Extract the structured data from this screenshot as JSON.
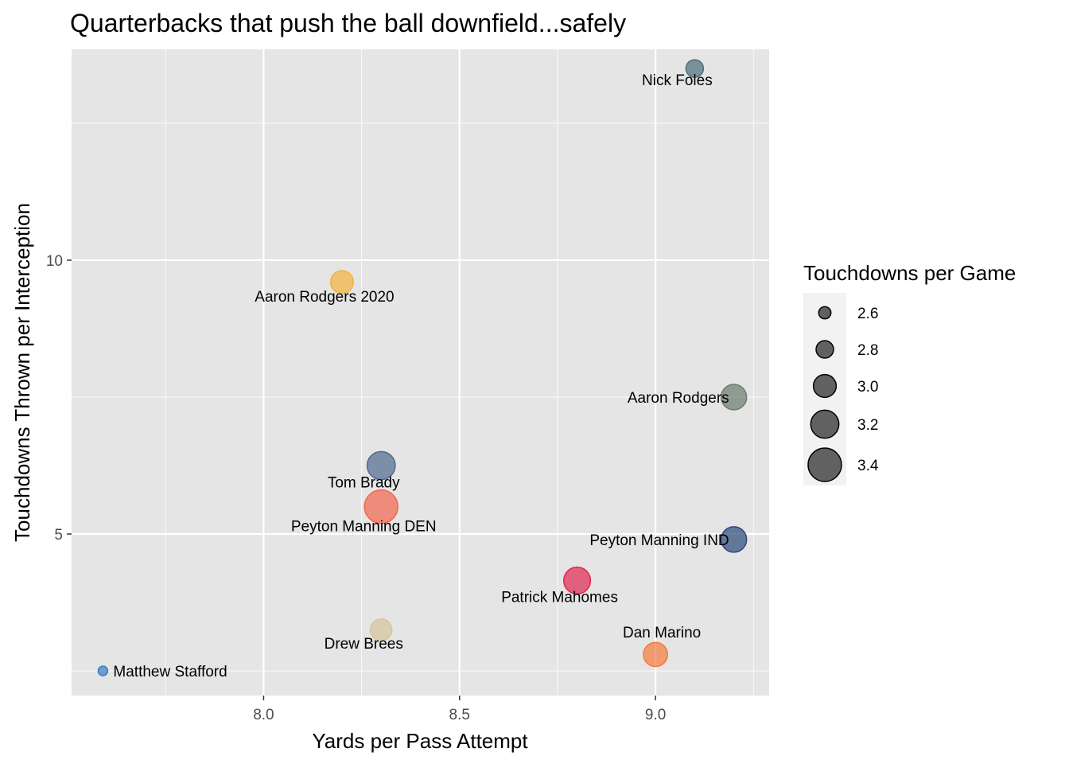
{
  "chart_data": {
    "type": "scatter",
    "title": "Quarterbacks that push the ball downfield...safely",
    "xlabel": "Yards per Pass Attempt",
    "ylabel": "Touchdowns Thrown per Interception",
    "xlim": [
      7.51,
      9.29
    ],
    "ylim": [
      2.05,
      13.85
    ],
    "x_ticks": [
      8.0,
      8.5,
      9.0
    ],
    "x_tick_labels": [
      "8.0",
      "8.5",
      "9.0"
    ],
    "y_ticks": [
      5,
      10
    ],
    "y_tick_labels": [
      "5",
      "10"
    ],
    "grid": true,
    "legend": {
      "title": "Touchdowns per Game",
      "placement": "right",
      "sizes": [
        2.6,
        2.8,
        3.0,
        3.2,
        3.4
      ],
      "labels": [
        "2.6",
        "2.8",
        "3.0",
        "3.2",
        "3.4"
      ]
    },
    "points": [
      {
        "label": "Nick Foles",
        "x": 9.1,
        "y": 13.5,
        "size": 2.8,
        "color": "#4f6e7a",
        "label_pos": "below-left"
      },
      {
        "label": "Aaron Rodgers 2020",
        "x": 8.2,
        "y": 9.6,
        "size": 3.0,
        "color": "#f2b33d",
        "label_pos": "below-left"
      },
      {
        "label": "Aaron Rodgers",
        "x": 9.2,
        "y": 7.5,
        "size": 3.1,
        "color": "#6b7b6d",
        "label_pos": "left"
      },
      {
        "label": "Tom Brady",
        "x": 8.3,
        "y": 6.25,
        "size": 3.2,
        "color": "#51698f",
        "label_pos": "below-left"
      },
      {
        "label": "Peyton Manning DEN",
        "x": 8.3,
        "y": 5.5,
        "size": 3.4,
        "color": "#f2664f",
        "label_pos": "below-left"
      },
      {
        "label": "Peyton Manning IND",
        "x": 9.2,
        "y": 4.9,
        "size": 3.1,
        "color": "#2b4a7a",
        "label_pos": "left"
      },
      {
        "label": "Patrick Mahomes",
        "x": 8.8,
        "y": 4.15,
        "size": 3.15,
        "color": "#e0284f",
        "label_pos": "below-left"
      },
      {
        "label": "Drew Brees",
        "x": 8.3,
        "y": 3.25,
        "size": 2.95,
        "color": "#d6c49c",
        "label_pos": "below-left"
      },
      {
        "label": "Dan Marino",
        "x": 9.0,
        "y": 2.8,
        "size": 3.05,
        "color": "#f57a3d",
        "label_pos": "above"
      },
      {
        "label": "Matthew Stafford",
        "x": 7.59,
        "y": 2.5,
        "size": 2.5,
        "color": "#3b7cc0",
        "label_pos": "right"
      }
    ]
  }
}
